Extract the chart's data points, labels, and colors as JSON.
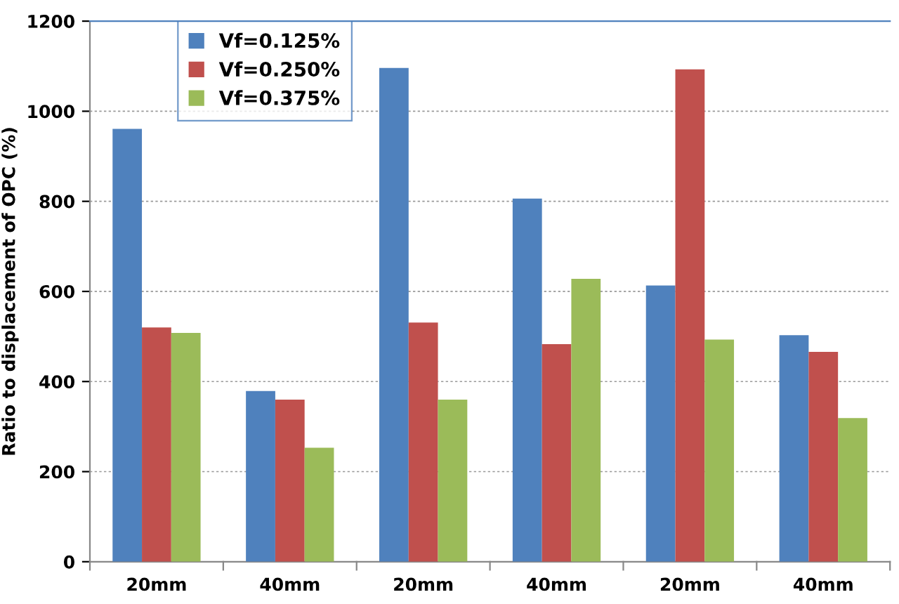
{
  "chart_data": {
    "type": "bar",
    "ylabel": "Ratio to displacement of OPC (%)",
    "categories": [
      "20mm",
      "40mm",
      "20mm",
      "40mm",
      "20mm",
      "40mm"
    ],
    "series": [
      {
        "name": "Vf=0.125%",
        "color": "#4f81bd",
        "values": [
          961,
          379,
          1096,
          806,
          613,
          503
        ]
      },
      {
        "name": "Vf=0.250%",
        "color": "#c0504d",
        "values": [
          520,
          360,
          531,
          483,
          1093,
          466
        ]
      },
      {
        "name": "Vf=0.375%",
        "color": "#9bbb59",
        "values": [
          508,
          253,
          360,
          628,
          493,
          319
        ]
      }
    ],
    "ylim": [
      0,
      1200
    ],
    "yticks": [
      0,
      200,
      400,
      600,
      800,
      1000,
      1200
    ],
    "grid": "y",
    "legend": "top left"
  }
}
